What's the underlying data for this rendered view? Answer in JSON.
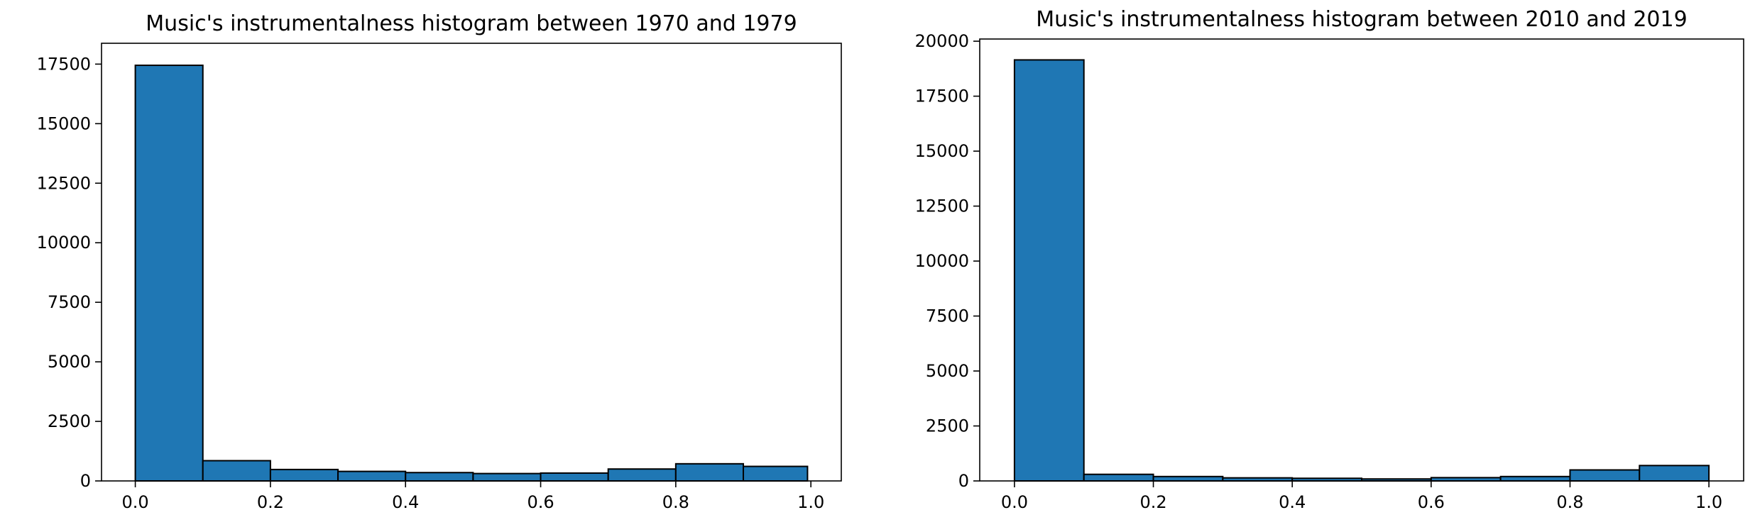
{
  "chart_data": [
    {
      "type": "bar",
      "title": "Music's instrumentalness histogram between 1970 and 1979",
      "xlabel": "",
      "ylabel": "",
      "bin_edges": [
        0.0,
        0.1,
        0.2,
        0.3,
        0.4,
        0.5,
        0.6,
        0.7,
        0.8,
        0.9,
        0.995
      ],
      "values": [
        17450,
        850,
        480,
        400,
        350,
        310,
        330,
        500,
        720,
        610
      ],
      "xlim": [
        -0.05,
        1.045
      ],
      "ylim": [
        0,
        18375
      ],
      "xticks": [
        0.0,
        0.2,
        0.4,
        0.6,
        0.8,
        1.0
      ],
      "xtick_labels": [
        "0.0",
        "0.2",
        "0.4",
        "0.6",
        "0.8",
        "1.0"
      ],
      "yticks": [
        0,
        2500,
        5000,
        7500,
        10000,
        12500,
        15000,
        17500
      ],
      "ytick_labels": [
        "0",
        "2500",
        "5000",
        "7500",
        "10000",
        "12500",
        "15000",
        "17500"
      ],
      "bar_color": "#1f77b4",
      "edge_color": "#000000",
      "grid": false
    },
    {
      "type": "bar",
      "title": "Music's instrumentalness histogram between 2010 and 2019",
      "xlabel": "",
      "ylabel": "",
      "bin_edges": [
        0.0,
        0.1,
        0.2,
        0.3,
        0.4,
        0.5,
        0.6,
        0.7,
        0.8,
        0.9,
        1.0
      ],
      "values": [
        19150,
        300,
        200,
        140,
        120,
        90,
        150,
        200,
        500,
        700
      ],
      "xlim": [
        -0.05,
        1.05
      ],
      "ylim": [
        0,
        20100
      ],
      "xticks": [
        0.0,
        0.2,
        0.4,
        0.6,
        0.8,
        1.0
      ],
      "xtick_labels": [
        "0.0",
        "0.2",
        "0.4",
        "0.6",
        "0.8",
        "1.0"
      ],
      "yticks": [
        0,
        2500,
        5000,
        7500,
        10000,
        12500,
        15000,
        17500,
        20000
      ],
      "ytick_labels": [
        "0",
        "2500",
        "5000",
        "7500",
        "10000",
        "12500",
        "15000",
        "17500",
        "20000"
      ],
      "bar_color": "#1f77b4",
      "edge_color": "#000000",
      "grid": false
    }
  ]
}
